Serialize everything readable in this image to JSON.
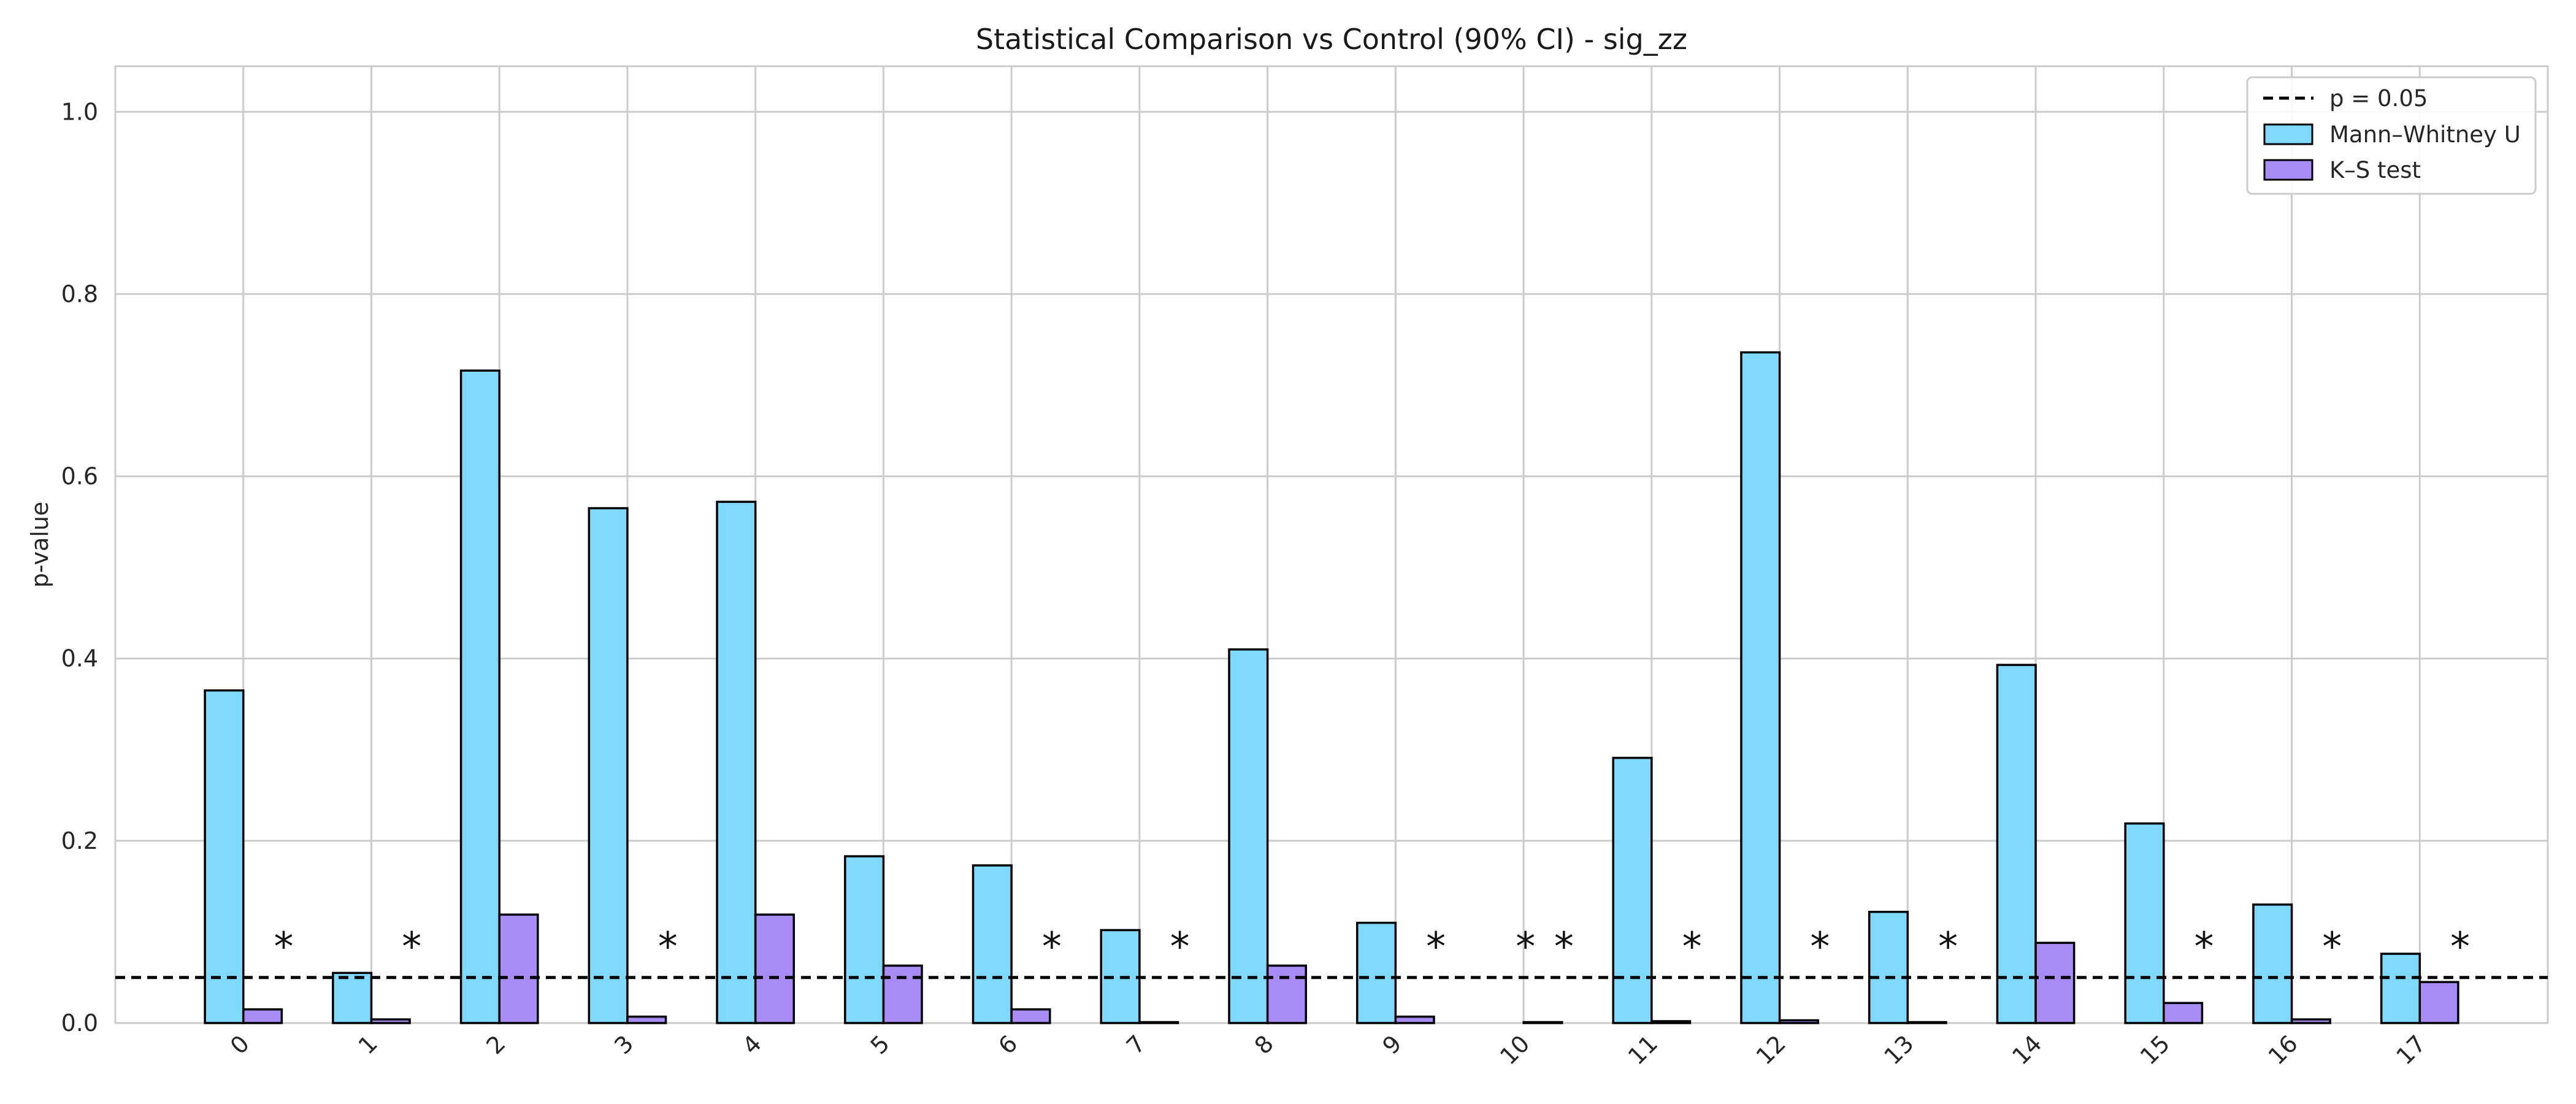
{
  "chart_data": {
    "type": "bar",
    "title": "Statistical Comparison vs Control (90% CI) - sig_zz",
    "xlabel": "",
    "ylabel": "p-value",
    "ylim": [
      0,
      1.05
    ],
    "yticks": [
      "0.0",
      "0.2",
      "0.4",
      "0.6",
      "0.8",
      "1.0"
    ],
    "categories": [
      "0",
      "1",
      "2",
      "3",
      "4",
      "5",
      "6",
      "7",
      "8",
      "9",
      "10",
      "11",
      "12",
      "13",
      "14",
      "15",
      "16",
      "17"
    ],
    "series": [
      {
        "name": "Mann–Whitney U",
        "color": "#7fd9fc",
        "values": [
          0.365,
          0.055,
          0.716,
          0.565,
          0.572,
          0.183,
          0.173,
          0.102,
          0.41,
          0.11,
          0.0,
          0.291,
          0.736,
          0.122,
          0.393,
          0.219,
          0.13,
          0.076
        ]
      },
      {
        "name": "K–S test",
        "color": "#a98bf5",
        "values": [
          0.015,
          0.004,
          0.119,
          0.007,
          0.119,
          0.063,
          0.015,
          0.001,
          0.063,
          0.007,
          0.001,
          0.002,
          0.003,
          0.001,
          0.088,
          0.022,
          0.004,
          0.045
        ]
      }
    ],
    "threshold": {
      "label": "p = 0.05",
      "value": 0.05,
      "style": "dashed",
      "color": "#000000"
    },
    "significance_marks": [
      {
        "category": "0",
        "series": "K–S test",
        "symbol": "*"
      },
      {
        "category": "1",
        "series": "K–S test",
        "symbol": "*"
      },
      {
        "category": "3",
        "series": "K–S test",
        "symbol": "*"
      },
      {
        "category": "6",
        "series": "K–S test",
        "symbol": "*"
      },
      {
        "category": "7",
        "series": "K–S test",
        "symbol": "*"
      },
      {
        "category": "9",
        "series": "K–S test",
        "symbol": "*"
      },
      {
        "category": "10",
        "series": "Mann–Whitney U",
        "symbol": "*"
      },
      {
        "category": "10",
        "series": "K–S test",
        "symbol": "*"
      },
      {
        "category": "11",
        "series": "K–S test",
        "symbol": "*"
      },
      {
        "category": "12",
        "series": "K–S test",
        "symbol": "*"
      },
      {
        "category": "13",
        "series": "K–S test",
        "symbol": "*"
      },
      {
        "category": "15",
        "series": "K–S test",
        "symbol": "*"
      },
      {
        "category": "16",
        "series": "K–S test",
        "symbol": "*"
      },
      {
        "category": "17",
        "series": "K–S test",
        "symbol": "*"
      }
    ],
    "grid": true,
    "legend_position": "top-right",
    "x_tick_rotation": 45
  }
}
